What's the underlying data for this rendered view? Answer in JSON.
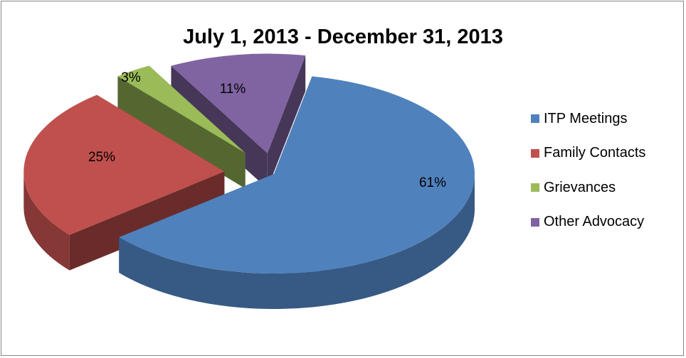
{
  "chart_data": {
    "type": "pie",
    "title": "July 1, 2013 - December 31, 2013",
    "style": "3d-exploded",
    "slices": [
      {
        "name": "ITP Meetings",
        "value": 61,
        "label": "61%",
        "color": "#4F81BD"
      },
      {
        "name": "Family Contacts",
        "value": 25,
        "label": "25%",
        "color": "#C0504D"
      },
      {
        "name": "Grievances",
        "value": 3,
        "label": "3%",
        "color": "#9BBB59"
      },
      {
        "name": "Other Advocacy",
        "value": 11,
        "label": "11%",
        "color": "#8064A2"
      }
    ],
    "legend_position": "right"
  }
}
